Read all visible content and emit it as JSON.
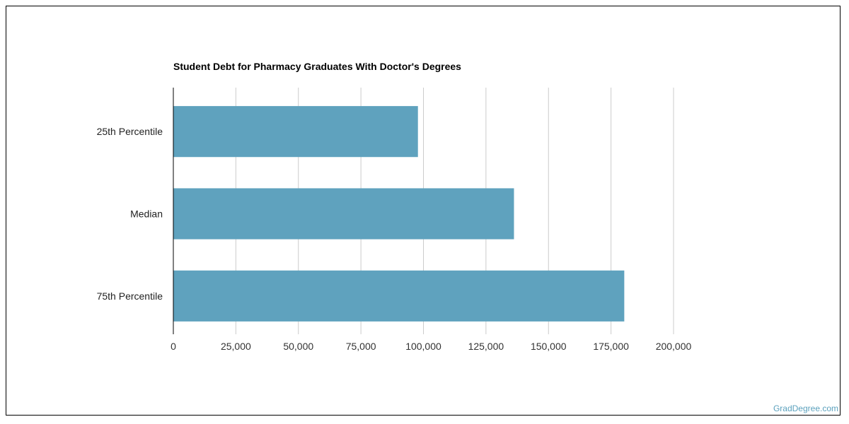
{
  "chart_data": {
    "type": "bar",
    "orientation": "horizontal",
    "title": "Student Debt for Pharmacy Graduates With Doctor's Degrees",
    "categories": [
      "25th Percentile",
      "Median",
      "75th Percentile"
    ],
    "values": [
      97800,
      136200,
      180300
    ],
    "xlim": [
      0,
      200000
    ],
    "x_ticks": [
      0,
      25000,
      50000,
      75000,
      100000,
      125000,
      150000,
      175000,
      200000
    ],
    "x_tick_labels": [
      "0",
      "25,000",
      "50,000",
      "75,000",
      "100,000",
      "125,000",
      "150,000",
      "175,000",
      "200,000"
    ],
    "xlabel": "",
    "ylabel": "",
    "grid": "vertical",
    "bar_color": "#5fa2be",
    "grid_color": "#cccccc"
  },
  "watermark": "GradDegree.com"
}
